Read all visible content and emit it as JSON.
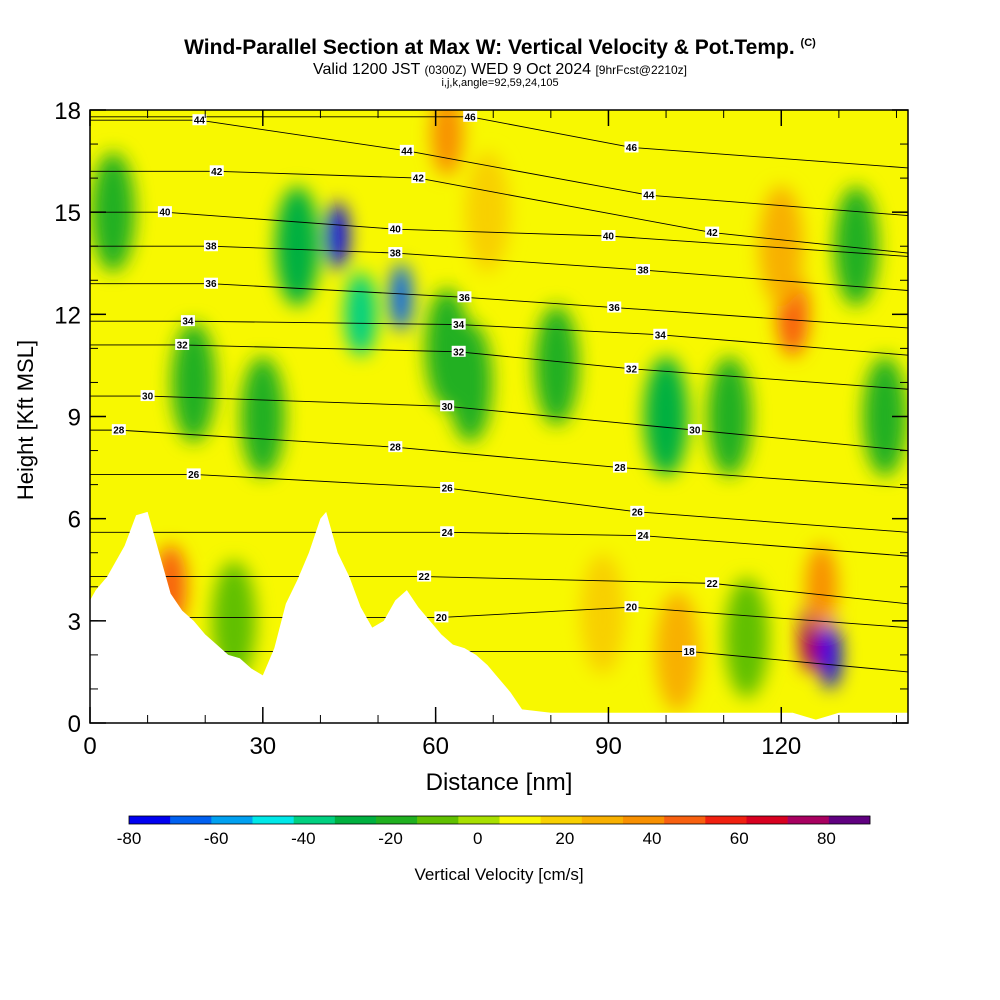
{
  "title": "Wind-Parallel Section at Max W: Vertical Velocity & Pot.Temp.",
  "copyright_mark": "(C)",
  "subtitle_main": "Valid 1200 JST",
  "subtitle_utc": "(0300Z)",
  "subtitle_date": "WED 9 Oct 2024",
  "subtitle_fcst": "[9hrFcst@2210z]",
  "indices": "i,j,k,angle=92,59,24,105",
  "chart_data": {
    "type": "heatmap",
    "xlabel": "Distance [nm]",
    "ylabel": "Height [Kft MSL]",
    "xlim": [
      0,
      142
    ],
    "ylim": [
      0,
      18
    ],
    "x_ticks": [
      0,
      30,
      60,
      90,
      120
    ],
    "y_ticks": [
      0,
      3,
      6,
      9,
      12,
      15,
      18
    ],
    "colorbar": {
      "label": "Vertical Velocity [cm/s]",
      "min": -80,
      "max": 90,
      "step": 10,
      "tick_labels": [
        "-80",
        "-60",
        "-40",
        "-20",
        "0",
        "20",
        "40",
        "60",
        "80"
      ],
      "colors": [
        "#0000f0",
        "#0060f0",
        "#00a0f0",
        "#00e8e8",
        "#00d080",
        "#00b040",
        "#20b020",
        "#60c000",
        "#a8e000",
        "#f8f800",
        "#f8d000",
        "#f8b000",
        "#f89000",
        "#f86010",
        "#f02010",
        "#d80020",
        "#a80060",
        "#600080"
      ]
    },
    "terrain": {
      "x_nm": [
        0,
        1,
        3,
        6,
        8,
        10,
        12,
        14,
        16,
        18,
        20,
        22,
        24,
        26,
        28,
        30,
        32,
        34,
        36,
        38,
        40,
        41,
        43,
        45,
        47,
        49,
        51,
        53,
        55,
        57,
        59,
        61,
        63,
        65,
        67,
        69,
        71,
        73,
        75,
        80,
        85,
        90,
        95,
        100,
        105,
        110,
        115,
        120,
        122,
        124,
        126,
        128,
        130,
        135,
        140,
        142
      ],
      "height_kft": [
        3.6,
        3.9,
        4.3,
        5.2,
        6.1,
        6.2,
        5.0,
        3.8,
        3.3,
        3.0,
        2.6,
        2.3,
        2.0,
        1.9,
        1.6,
        1.4,
        2.2,
        3.5,
        4.2,
        5.0,
        6.0,
        6.2,
        5.0,
        4.3,
        3.4,
        2.8,
        3.0,
        3.6,
        3.9,
        3.4,
        3.0,
        2.6,
        2.3,
        2.2,
        2.0,
        1.7,
        1.3,
        0.9,
        0.4,
        0.3,
        0.3,
        0.3,
        0.3,
        0.3,
        0.3,
        0.3,
        0.3,
        0.3,
        0.3,
        0.2,
        0.1,
        0.2,
        0.3,
        0.3,
        0.3,
        0.3
      ]
    },
    "vertical_velocity_features": [
      {
        "x_nm": 43,
        "height_kft": 14.3,
        "w_cm_s": -80
      },
      {
        "x_nm": 54,
        "height_kft": 12.5,
        "w_cm_s": -70
      },
      {
        "x_nm": 47,
        "height_kft": 12.0,
        "w_cm_s": -40
      },
      {
        "x_nm": 62,
        "height_kft": 11.0,
        "w_cm_s": -20
      },
      {
        "x_nm": 66,
        "height_kft": 10.0,
        "w_cm_s": -20
      },
      {
        "x_nm": 100,
        "height_kft": 9.0,
        "w_cm_s": -30
      },
      {
        "x_nm": 111,
        "height_kft": 9.0,
        "w_cm_s": -15
      },
      {
        "x_nm": 81,
        "height_kft": 10.5,
        "w_cm_s": -15
      },
      {
        "x_nm": 138,
        "height_kft": 9.0,
        "w_cm_s": -20
      },
      {
        "x_nm": 128.5,
        "height_kft": 2.0,
        "w_cm_s": -80
      },
      {
        "x_nm": 125,
        "height_kft": 2.5,
        "w_cm_s": 80
      },
      {
        "x_nm": 127,
        "height_kft": 4.0,
        "w_cm_s": 40
      },
      {
        "x_nm": 122,
        "height_kft": 12.0,
        "w_cm_s": 50
      },
      {
        "x_nm": 120,
        "height_kft": 14.0,
        "w_cm_s": 30
      },
      {
        "x_nm": 62,
        "height_kft": 17.3,
        "w_cm_s": 40
      },
      {
        "x_nm": 69,
        "height_kft": 15.0,
        "w_cm_s": 25
      },
      {
        "x_nm": 14,
        "height_kft": 4.0,
        "w_cm_s": 50
      },
      {
        "x_nm": 102,
        "height_kft": 2.1,
        "w_cm_s": 30
      },
      {
        "x_nm": 89,
        "height_kft": 3.2,
        "w_cm_s": 20
      },
      {
        "x_nm": 36,
        "height_kft": 14.0,
        "w_cm_s": -30
      },
      {
        "x_nm": 4,
        "height_kft": 15.0,
        "w_cm_s": -15
      },
      {
        "x_nm": 18,
        "height_kft": 10.0,
        "w_cm_s": -15
      },
      {
        "x_nm": 30,
        "height_kft": 9.0,
        "w_cm_s": -12
      },
      {
        "x_nm": 25,
        "height_kft": 3.0,
        "w_cm_s": -10
      },
      {
        "x_nm": 114,
        "height_kft": 2.5,
        "w_cm_s": -10
      },
      {
        "x_nm": 133,
        "height_kft": 14.0,
        "w_cm_s": -15
      }
    ],
    "pot_temp_contour_labels": [
      {
        "x_nm": 19,
        "height_kft": 17.7,
        "text": "44"
      },
      {
        "x_nm": 66,
        "height_kft": 17.8,
        "text": "46"
      },
      {
        "x_nm": 55,
        "height_kft": 16.8,
        "text": "44"
      },
      {
        "x_nm": 94,
        "height_kft": 16.9,
        "text": "46"
      },
      {
        "x_nm": 22,
        "height_kft": 16.2,
        "text": "42"
      },
      {
        "x_nm": 57,
        "height_kft": 16.0,
        "text": "42"
      },
      {
        "x_nm": 97,
        "height_kft": 15.5,
        "text": "44"
      },
      {
        "x_nm": 13,
        "height_kft": 15.0,
        "text": "40"
      },
      {
        "x_nm": 53,
        "height_kft": 14.5,
        "text": "40"
      },
      {
        "x_nm": 90,
        "height_kft": 14.3,
        "text": "40"
      },
      {
        "x_nm": 108,
        "height_kft": 14.4,
        "text": "42"
      },
      {
        "x_nm": 21,
        "height_kft": 14.0,
        "text": "38"
      },
      {
        "x_nm": 53,
        "height_kft": 13.8,
        "text": "38"
      },
      {
        "x_nm": 96,
        "height_kft": 13.3,
        "text": "38"
      },
      {
        "x_nm": 21,
        "height_kft": 12.9,
        "text": "36"
      },
      {
        "x_nm": 65,
        "height_kft": 12.5,
        "text": "36"
      },
      {
        "x_nm": 91,
        "height_kft": 12.2,
        "text": "36"
      },
      {
        "x_nm": 17,
        "height_kft": 11.8,
        "text": "34"
      },
      {
        "x_nm": 64,
        "height_kft": 11.7,
        "text": "34"
      },
      {
        "x_nm": 99,
        "height_kft": 11.4,
        "text": "34"
      },
      {
        "x_nm": 16,
        "height_kft": 11.1,
        "text": "32"
      },
      {
        "x_nm": 64,
        "height_kft": 10.9,
        "text": "32"
      },
      {
        "x_nm": 94,
        "height_kft": 10.4,
        "text": "32"
      },
      {
        "x_nm": 10,
        "height_kft": 9.6,
        "text": "30"
      },
      {
        "x_nm": 62,
        "height_kft": 9.3,
        "text": "30"
      },
      {
        "x_nm": 105,
        "height_kft": 8.6,
        "text": "30"
      },
      {
        "x_nm": 5,
        "height_kft": 8.6,
        "text": "28"
      },
      {
        "x_nm": 53,
        "height_kft": 8.1,
        "text": "28"
      },
      {
        "x_nm": 92,
        "height_kft": 7.5,
        "text": "28"
      },
      {
        "x_nm": 18,
        "height_kft": 7.3,
        "text": "26"
      },
      {
        "x_nm": 62,
        "height_kft": 6.9,
        "text": "26"
      },
      {
        "x_nm": 95,
        "height_kft": 6.2,
        "text": "26"
      },
      {
        "x_nm": 62,
        "height_kft": 5.6,
        "text": "24"
      },
      {
        "x_nm": 96,
        "height_kft": 5.5,
        "text": "24"
      },
      {
        "x_nm": 58,
        "height_kft": 4.3,
        "text": "22"
      },
      {
        "x_nm": 108,
        "height_kft": 4.1,
        "text": "22"
      },
      {
        "x_nm": 61,
        "height_kft": 3.1,
        "text": "20"
      },
      {
        "x_nm": 94,
        "height_kft": 3.4,
        "text": "20"
      },
      {
        "x_nm": 104,
        "height_kft": 2.1,
        "text": "18"
      }
    ]
  }
}
